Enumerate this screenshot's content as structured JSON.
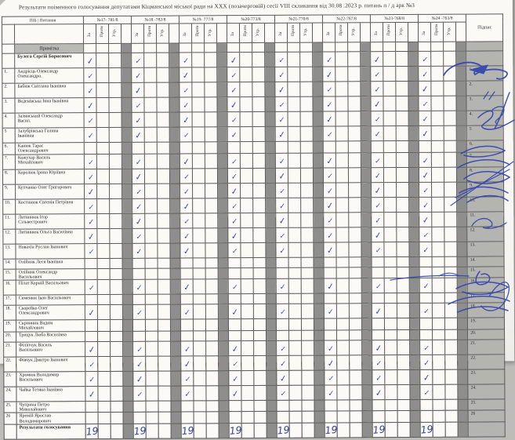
{
  "title": "Результати поіменного голосування  депутатами Кіцманської міської ради  на XXX (позачерговій) сесії VIII скликання від  30.08 .2023 р.  питань   п / д  арк №3",
  "header": {
    "pib_label": "ПІБ | Питання",
    "signature_label": "Підпис",
    "sub_columns": [
      "За",
      "Проти",
      "Утр."
    ],
    "questions": [
      "№17- 781/8",
      "№18 -782/8",
      "№19- 777/8",
      "№20-773/8",
      "№21-770/8",
      "№22-767/8",
      "№23-768/8",
      "№24 -763/8"
    ]
  },
  "note_row_label": "Примітка",
  "check_glyph": "✓",
  "head_person": {
    "name": "Булега Сергій  Борисович",
    "voted_za_all": true,
    "has_signature": true
  },
  "deputies": [
    {
      "num": "1.",
      "name": "Андрієць Олександр",
      "name2": "Олександро.",
      "voted_za_all": true,
      "has_signature": true
    },
    {
      "num": "2.",
      "name": "Бабюк Світлана Іванівна",
      "name2": "",
      "voted_za_all": true,
      "has_signature": false
    },
    {
      "num": "3.",
      "name": "Веденівська Інна Іванівна",
      "name2": "",
      "voted_za_all": true,
      "has_signature": true
    },
    {
      "num": "4.",
      "name": "Залянський Олександр",
      "name2": "Васил.",
      "voted_za_all": true,
      "has_signature": true
    },
    {
      "num": "5",
      "name": "Залубрівська Галина",
      "name2": "Іванівна",
      "voted_za_all": true,
      "has_signature": true
    },
    {
      "num": "6.",
      "name": "Канюк Тарас",
      "name2": "Олександрович",
      "voted_za_all": false,
      "has_signature": false
    },
    {
      "num": "7.",
      "name": "Кожухар Василь",
      "name2": "Михайлович",
      "voted_za_all": true,
      "has_signature": false
    },
    {
      "num": "8.",
      "name": "Королюк Ірина Юріївна",
      "name2": "",
      "voted_za_all": true,
      "has_signature": true
    },
    {
      "num": "9.",
      "name": "Купчанко Олег Григорович",
      "name2": "",
      "voted_za_all": true,
      "has_signature": true
    },
    {
      "num": "10.",
      "name": "Костинюк Євгенія Петрівна",
      "name2": "",
      "voted_za_all": true,
      "has_signature": true
    },
    {
      "num": "11.",
      "name": "Литвинюк Ігор",
      "name2": "Сільвестрович",
      "voted_za_all": true,
      "has_signature": true
    },
    {
      "num": "12.",
      "name": "Литвинюк Ольга Василівна",
      "name2": "",
      "voted_za_all": true,
      "has_signature": true
    },
    {
      "num": "13.",
      "name": "Новахін Руслан Іванович",
      "name2": "",
      "voted_za_all": true,
      "has_signature": true
    },
    {
      "num": "14.",
      "name": "Олійник Леся Іванівна",
      "name2": "",
      "voted_za_all": false,
      "has_signature": false
    },
    {
      "num": "15.",
      "name": "Олійник Олександр",
      "name2": "Васильович",
      "voted_za_all": false,
      "has_signature": false
    },
    {
      "num": "16.",
      "name": "Пілат Корній Васильович",
      "name2": "",
      "voted_za_all": true,
      "has_signature": true
    },
    {
      "num": "17.",
      "name": "Семенюк Іван Васильович",
      "name2": "",
      "voted_za_all": false,
      "has_signature": false
    },
    {
      "num": "18.",
      "name": "Скорейко Олег",
      "name2": "Олександрович",
      "voted_za_all": true,
      "has_signature": false
    },
    {
      "num": "19.",
      "name": "Скринник Вадим",
      "name2": "Михайлович",
      "voted_za_all": false,
      "has_signature": false
    },
    {
      "num": "20.",
      "name": "Трицук Люба Василівна",
      "name2": "",
      "voted_za_all": false,
      "has_signature": false
    },
    {
      "num": "21.",
      "name": "Філіпчук Василь",
      "name2": "Васильович",
      "voted_za_all": true,
      "has_signature": true
    },
    {
      "num": "22.",
      "name": "Фівчук Дмитро Іванович",
      "name2": "",
      "voted_za_all": true,
      "has_signature": true
    },
    {
      "num": "23.",
      "name": "Хромюк Володимир",
      "name2": "Васильович",
      "voted_za_all": true,
      "has_signature": true
    },
    {
      "num": "24.",
      "name": "Чайка Тетяна Іванівна",
      "name2": "",
      "voted_za_all": true,
      "has_signature": true
    },
    {
      "num": "25.",
      "name": "Чуприна Петро",
      "name2": "Миколайович",
      "voted_za_all": false,
      "has_signature": false
    },
    {
      "num": "26",
      "name": "Яремій Ярослав",
      "name2": "Володимирович",
      "voted_za_all": false,
      "has_signature": false
    }
  ],
  "results": {
    "label": "Результати голосування",
    "za_values": [
      "19",
      "19",
      "19",
      "19",
      "19",
      "19",
      "19",
      "19"
    ]
  },
  "colors": {
    "ink_blue": "#3246a8",
    "separator_gray": "#8e8e8c",
    "signature_column_gray": "#b4b4b1",
    "note_gray": "#b9b9b6",
    "paper": "#faf9f5"
  }
}
